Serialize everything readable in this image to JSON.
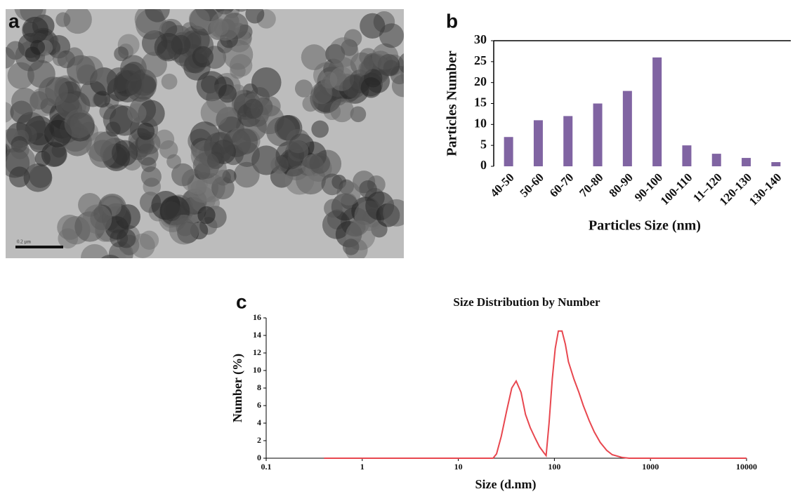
{
  "image": {
    "panel_label": "a",
    "scale_bar": "0.2 µm"
  },
  "chart_data": [
    {
      "type": "bar",
      "panel_label": "b",
      "ylabel": "Particles Number",
      "xlabel": "Particles Size (nm)",
      "categories": [
        "40-50",
        "50-60",
        "60-70",
        "70-80",
        "80-90",
        "90-100",
        "100-110",
        "11–120",
        "120-130",
        "130-140"
      ],
      "values": [
        7,
        11,
        12,
        15,
        18,
        26,
        5,
        3,
        2,
        1
      ],
      "color": "#8064a2",
      "ylim": [
        0,
        30
      ],
      "yticks": [
        0,
        5,
        10,
        15,
        20,
        25,
        30
      ]
    },
    {
      "type": "line",
      "panel_label": "c",
      "title": "Size Distribution by Number",
      "ylabel": "Number (%)",
      "xlabel": "Size (d.nm)",
      "xscale": "log",
      "color": "#e8474f",
      "x": [
        0.4,
        23,
        25,
        28,
        32,
        36,
        40,
        45,
        50,
        56,
        63,
        70,
        78,
        82,
        88,
        95,
        102,
        110,
        120,
        130,
        140,
        160,
        180,
        200,
        230,
        260,
        300,
        350,
        400,
        500,
        600,
        10000
      ],
      "values": [
        0,
        0,
        0.5,
        2.5,
        5.5,
        8,
        8.8,
        7.5,
        5,
        3.5,
        2.3,
        1.3,
        0.6,
        0.3,
        4,
        9,
        12.5,
        14.5,
        14.5,
        13,
        11,
        9,
        7.5,
        6,
        4.3,
        3,
        1.8,
        0.9,
        0.4,
        0.1,
        0,
        0
      ],
      "xlim": [
        0.1,
        10000
      ],
      "xticks": [
        0.1,
        1,
        10,
        100,
        1000,
        10000
      ],
      "ylim": [
        0,
        16
      ],
      "yticks": [
        0,
        2,
        4,
        6,
        8,
        10,
        12,
        14,
        16
      ]
    }
  ]
}
